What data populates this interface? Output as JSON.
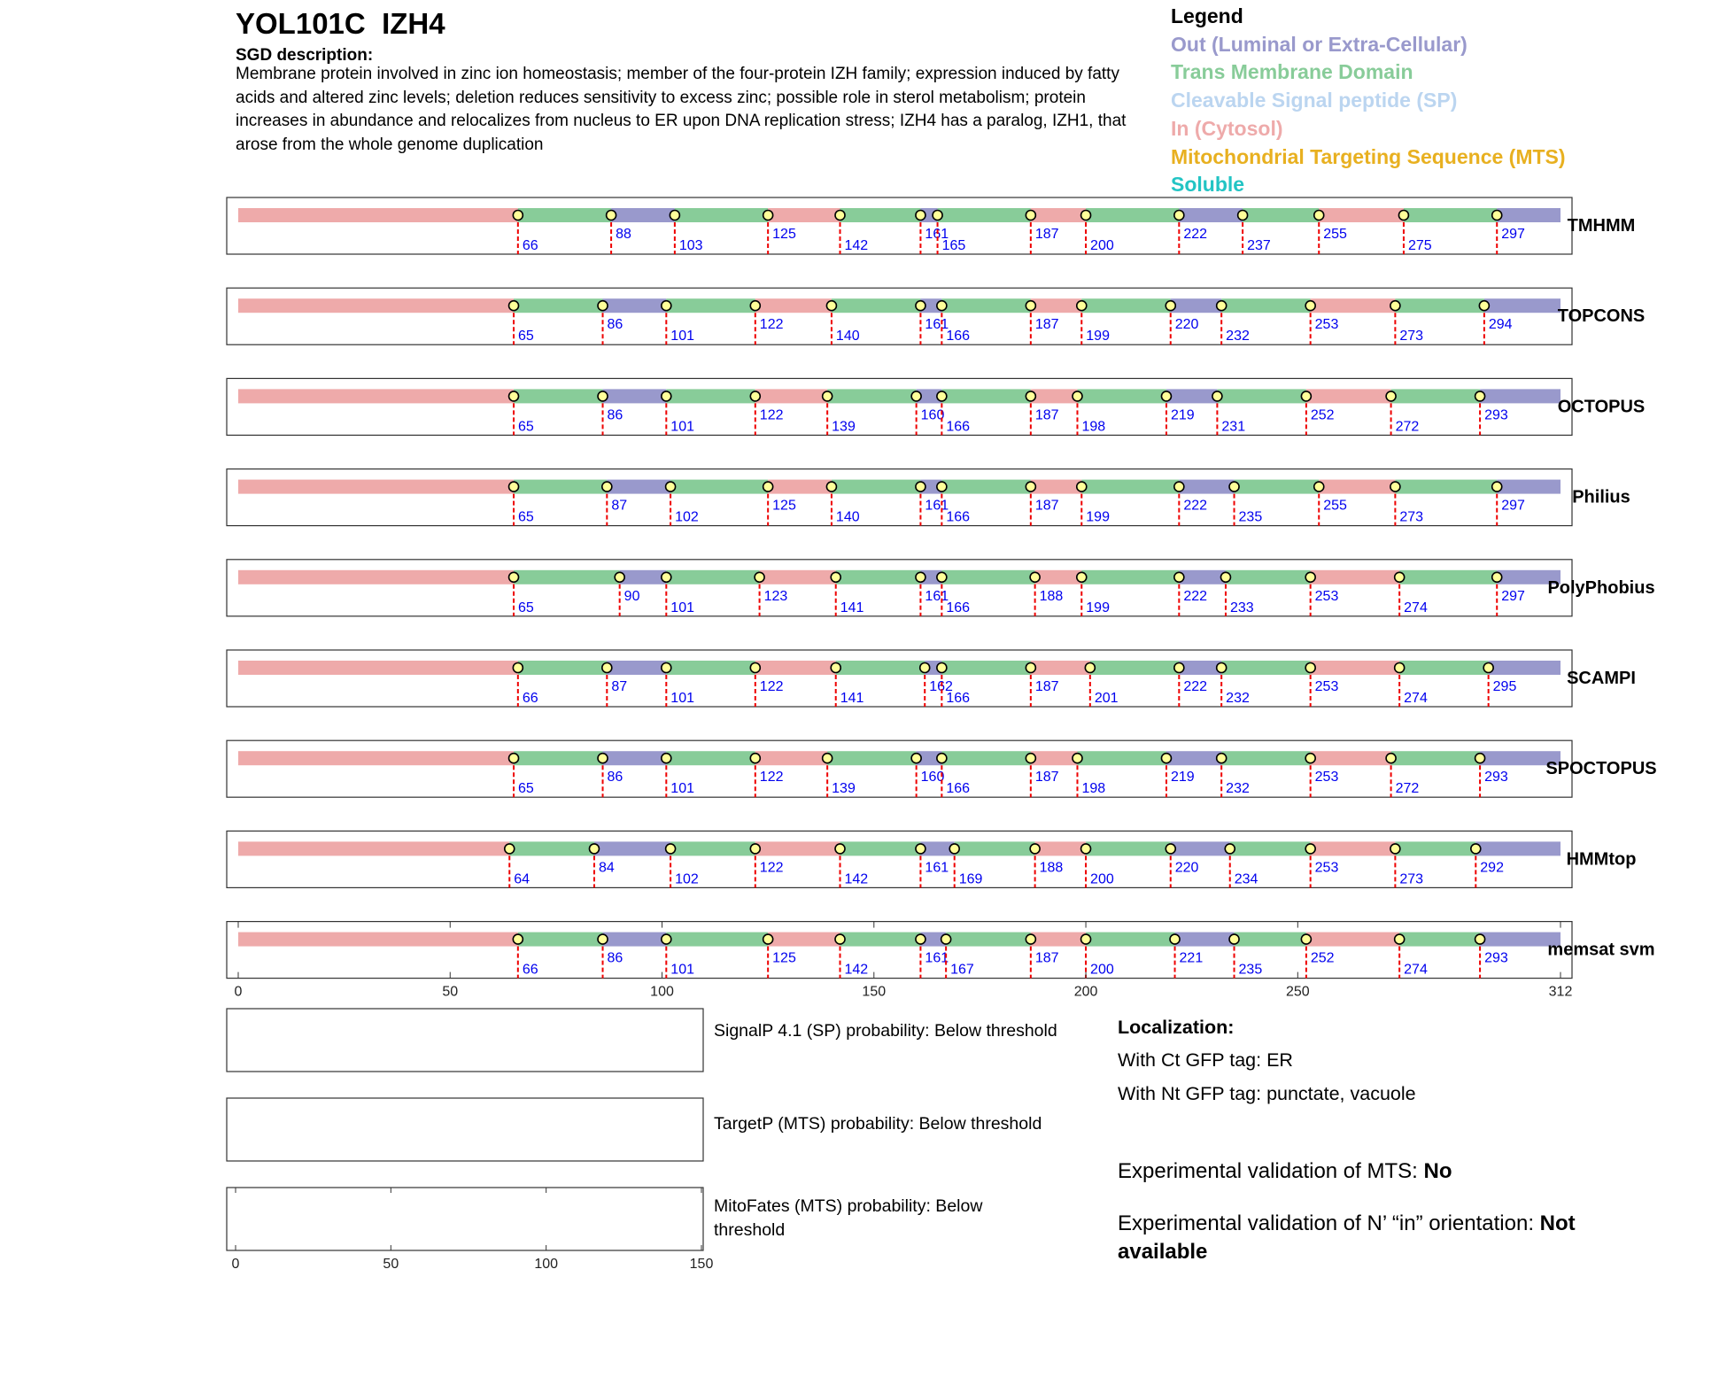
{
  "header": {
    "title": "YOL101C  IZH4",
    "sgd_heading": "SGD description:",
    "sgd_text": "Membrane protein involved in zinc ion homeostasis; member of the four-protein IZH family; expression induced by fatty acids and altered zinc levels; deletion reduces sensitivity to excess zinc; possible role in sterol metabolism; protein increases in abundance and relocalizes from nucleus to ER upon DNA replication stress; IZH4 has a paralog, IZH1, that arose from the whole genome duplication"
  },
  "legend": {
    "title": "Legend",
    "items": [
      {
        "label": "Out (Luminal or Extra-Cellular)",
        "color": "#9999cc"
      },
      {
        "label": "Trans Membrane Domain",
        "color": "#88cc99"
      },
      {
        "label": "Cleavable Signal peptide (SP)",
        "color": "#bbd5f0"
      },
      {
        "label": "In (Cytosol)",
        "color": "#eeaaaa"
      },
      {
        "label": "Mitochondrial Targeting Sequence (MTS)",
        "color": "#e8b020"
      },
      {
        "label": "Soluble",
        "color": "#22c4c4"
      }
    ]
  },
  "colors": {
    "in": "#eeaaaa",
    "out": "#9999cc",
    "tm": "#88cc99",
    "boundary_line": "#ee0000",
    "boundary_label": "#0000ee",
    "marker_fill": "#ffff99"
  },
  "chart_data": {
    "type": "topology-tracks",
    "xlim": [
      0,
      312
    ],
    "x_ticks": [
      0,
      50,
      100,
      150,
      200,
      250,
      312
    ],
    "start_state": "in",
    "tracks": [
      {
        "name": "TMHMM",
        "boundaries": [
          66,
          88,
          103,
          125,
          142,
          161,
          165,
          187,
          200,
          222,
          237,
          255,
          275,
          297
        ]
      },
      {
        "name": "TOPCONS",
        "boundaries": [
          65,
          86,
          101,
          122,
          140,
          161,
          166,
          187,
          199,
          220,
          232,
          253,
          273,
          294
        ]
      },
      {
        "name": "OCTOPUS",
        "boundaries": [
          65,
          86,
          101,
          122,
          139,
          160,
          166,
          187,
          198,
          219,
          231,
          252,
          272,
          293
        ]
      },
      {
        "name": "Philius",
        "boundaries": [
          65,
          87,
          102,
          125,
          140,
          161,
          166,
          187,
          199,
          222,
          235,
          255,
          273,
          297
        ]
      },
      {
        "name": "PolyPhobius",
        "boundaries": [
          65,
          90,
          101,
          123,
          141,
          161,
          166,
          188,
          199,
          222,
          233,
          253,
          274,
          297
        ]
      },
      {
        "name": "SCAMPI",
        "boundaries": [
          66,
          87,
          101,
          122,
          141,
          162,
          166,
          187,
          201,
          222,
          232,
          253,
          274,
          295
        ]
      },
      {
        "name": "SPOCTOPUS",
        "boundaries": [
          65,
          86,
          101,
          122,
          139,
          160,
          166,
          187,
          198,
          219,
          232,
          253,
          272,
          293
        ]
      },
      {
        "name": "HMMtop",
        "boundaries": [
          64,
          84,
          102,
          122,
          142,
          161,
          169,
          188,
          200,
          220,
          234,
          253,
          273,
          292
        ]
      },
      {
        "name": "memsat svm",
        "boundaries": [
          66,
          86,
          101,
          125,
          142,
          161,
          167,
          187,
          200,
          221,
          235,
          252,
          274,
          293
        ]
      }
    ],
    "probability_panels": {
      "xlim": [
        0,
        150
      ],
      "x_ticks": [
        0,
        50,
        100,
        150
      ]
    }
  },
  "probabilities": [
    {
      "label": "SignalP 4.1 (SP) probability: Below threshold"
    },
    {
      "label": "TargetP (MTS) probability: Below threshold"
    },
    {
      "label": "MitoFates (MTS) probability: Below threshold"
    }
  ],
  "localization": {
    "title": "Localization:",
    "ct": "With Ct GFP tag: ER",
    "nt": "With Nt GFP tag: punctate, vacuole"
  },
  "validation": {
    "mts_label": "Experimental validation of MTS: ",
    "mts_value": "No",
    "orientation_label": "Experimental validation of N’ “in” orientation: ",
    "orientation_value": "Not available"
  }
}
